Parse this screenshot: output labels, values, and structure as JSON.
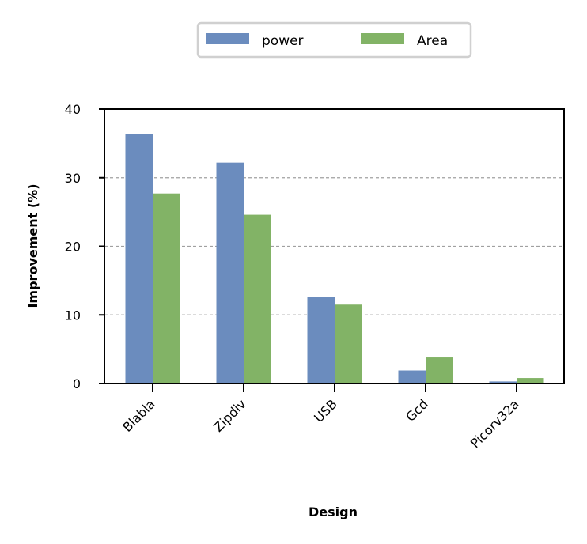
{
  "chart_data": {
    "type": "bar",
    "title": "",
    "xlabel": "Design",
    "ylabel": "Improvement (%)",
    "categories": [
      "Blabla",
      "Zipdiv",
      "USB",
      "Gcd",
      "Picorv32a"
    ],
    "series": [
      {
        "name": "power",
        "values": [
          36.4,
          32.2,
          12.6,
          1.9,
          0.3
        ],
        "color": "#6b8cbe"
      },
      {
        "name": "Area",
        "values": [
          27.7,
          24.6,
          11.5,
          3.8,
          0.8
        ],
        "color": "#82b366"
      }
    ],
    "ylim": [
      0,
      40
    ],
    "yticks": [
      "0",
      "10",
      "20",
      "30",
      "40"
    ],
    "grid": "horizontal dashed",
    "legend_position": "top-center"
  }
}
